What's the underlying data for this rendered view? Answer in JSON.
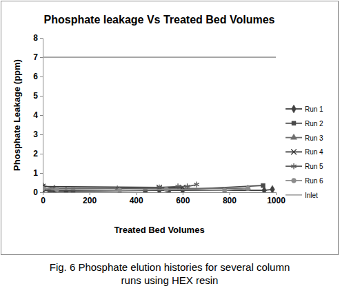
{
  "chart_data": {
    "type": "line",
    "title": "Phosphate leakage Vs Treated Bed Volumes",
    "x_label": "Treated Bed Volumes",
    "y_label": "Phosphate Leakage (ppm)",
    "caption": [
      "Fig. 6 Phosphate elution histories for several column",
      "runs using HEX resin"
    ],
    "xlim": [
      0,
      1000
    ],
    "xticks": [
      0,
      200,
      400,
      600,
      800,
      1000
    ],
    "ylim": [
      0,
      8
    ],
    "yticks": [
      0,
      1,
      2,
      3,
      4,
      5,
      6,
      7,
      8
    ],
    "grid": false,
    "legend": "right",
    "series": [
      {
        "name": "Run 1",
        "color": "#404040",
        "marker": "diamond",
        "line_style": "solid",
        "x": [
          0,
          50,
          100,
          500,
          600,
          950,
          985
        ],
        "values": [
          0.1,
          0.05,
          0.05,
          0.1,
          0.1,
          0.1,
          0.15
        ]
      },
      {
        "name": "Run 2",
        "color": "#4a4a4a",
        "marker": "square",
        "line_style": "solid",
        "x": [
          0,
          30,
          130,
          440,
          540,
          945
        ],
        "values": [
          0.15,
          0.1,
          0.1,
          0.1,
          0.1,
          0.35
        ]
      },
      {
        "name": "Run 3",
        "color": "#6e6e6e",
        "marker": "triangle",
        "line_style": "solid",
        "x": [
          0,
          50,
          880
        ],
        "values": [
          0.35,
          0.2,
          0.2
        ]
      },
      {
        "name": "Run 4",
        "color": "#3a3a3a",
        "marker": "x",
        "line_style": "solid",
        "x": [
          0,
          500,
          600
        ],
        "values": [
          0.3,
          0.25,
          0.25
        ]
      },
      {
        "name": "Run 5",
        "color": "#5a5a5a",
        "marker": "star",
        "line_style": "solid",
        "x": [
          320,
          500,
          580,
          620,
          660
        ],
        "values": [
          0.2,
          0.25,
          0.3,
          0.3,
          0.4
        ]
      },
      {
        "name": "Run 6",
        "color": "#8c8c8c",
        "marker": "circle",
        "line_style": "solid",
        "x": [
          0,
          60,
          330,
          530,
          780,
          880
        ],
        "values": [
          0.2,
          0.15,
          0.1,
          0.15,
          0.1,
          0.2
        ]
      },
      {
        "name": "Inlet",
        "color": "#a6a6a6",
        "marker": "none",
        "line_style": "solid",
        "x": [
          0,
          1000
        ],
        "values": [
          7,
          7
        ]
      }
    ]
  }
}
